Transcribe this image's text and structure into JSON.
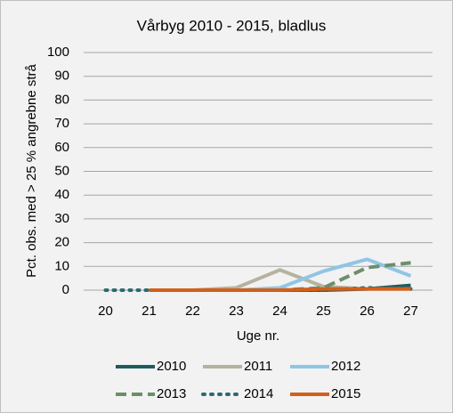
{
  "chart_data": {
    "type": "line",
    "title": "Vårbyg 2010 - 2015, bladlus",
    "x_label": "Uge nr.",
    "y_label": "Pct. obs. med > 25 % angrebne strå",
    "categories": [
      "20",
      "21",
      "22",
      "23",
      "24",
      "25",
      "26",
      "27"
    ],
    "ylim": [
      0,
      100
    ],
    "yticks": [
      0,
      10,
      20,
      30,
      40,
      50,
      60,
      70,
      80,
      90,
      100
    ],
    "grid": true,
    "legend": "bottom",
    "series": [
      {
        "name": "2010",
        "color": "#1f5a5e",
        "dash": "solid",
        "values": [
          null,
          0,
          0,
          0,
          0,
          0,
          0.5,
          2
        ]
      },
      {
        "name": "2011",
        "color": "#b5b39f",
        "dash": "solid",
        "values": [
          null,
          0,
          0,
          1,
          8.5,
          1.5,
          0.5,
          0.5
        ]
      },
      {
        "name": "2012",
        "color": "#8fc5e6",
        "dash": "solid",
        "values": [
          null,
          0,
          0,
          0,
          1,
          8,
          13,
          6
        ]
      },
      {
        "name": "2013",
        "color": "#6b8f6b",
        "dash": "dashed",
        "values": [
          null,
          0,
          0,
          0,
          0,
          1,
          9.5,
          11.5
        ]
      },
      {
        "name": "2014",
        "color": "#2a6b70",
        "dash": "dotted",
        "values": [
          0,
          0,
          0,
          0,
          0,
          0,
          1,
          0.5
        ]
      },
      {
        "name": "2015",
        "color": "#d2601a",
        "dash": "solid",
        "values": [
          null,
          0,
          0,
          0,
          0,
          0.5,
          0.5,
          0.5
        ]
      }
    ]
  }
}
